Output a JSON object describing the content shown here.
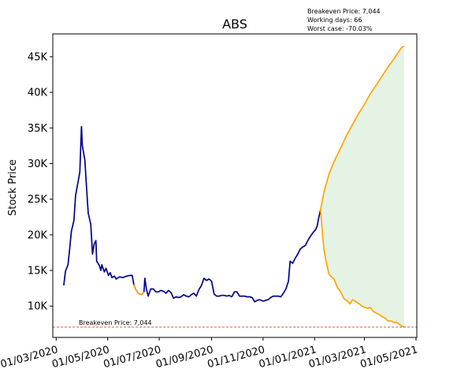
{
  "chart_data": {
    "type": "line",
    "title": "ABS",
    "ylabel": "Stock Price",
    "xlabel": "",
    "x_ticks": [
      "01/03/2020",
      "01/05/2020",
      "01/07/2020",
      "01/09/2020",
      "01/11/2020",
      "01/01/2021",
      "01/03/2021",
      "01/05/2021"
    ],
    "y_ticks": [
      "10K",
      "15K",
      "20K",
      "25K",
      "30K",
      "35K",
      "40K",
      "45K"
    ],
    "y_tick_values": [
      10000,
      15000,
      20000,
      25000,
      30000,
      35000,
      40000,
      45000
    ],
    "ylim": [
      5600,
      48200
    ],
    "xlim": [
      "2020-02-26",
      "2021-05-02"
    ],
    "grid": false,
    "info_lines": [
      "Breakeven Price: 7,044",
      "Working days: 66",
      "Worst case: -70.03%"
    ],
    "breakeven": {
      "value": 7044,
      "label": "Breakeven Price: 7,044",
      "color": "#e53935"
    },
    "band_color": "#a5d6a7",
    "series": [
      {
        "role": "historical",
        "color": "#00008b",
        "points": [
          [
            "2020-03-10",
            12900
          ],
          [
            "2020-03-12",
            14900
          ],
          [
            "2020-03-15",
            15800
          ],
          [
            "2020-03-17",
            18000
          ],
          [
            "2020-03-19",
            20500
          ],
          [
            "2020-03-22",
            22000
          ],
          [
            "2020-03-24",
            25500
          ],
          [
            "2020-03-27",
            27500
          ],
          [
            "2020-03-29",
            28800
          ],
          [
            "2020-03-31",
            35200
          ],
          [
            "2020-04-01",
            32500
          ],
          [
            "2020-04-04",
            30500
          ],
          [
            "2020-04-06",
            26500
          ],
          [
            "2020-04-08",
            23000
          ],
          [
            "2020-04-11",
            21500
          ],
          [
            "2020-04-13",
            17300
          ],
          [
            "2020-04-15",
            18700
          ],
          [
            "2020-04-17",
            19200
          ],
          [
            "2020-04-18",
            16300
          ],
          [
            "2020-04-21",
            15700
          ],
          [
            "2020-04-23",
            15000
          ],
          [
            "2020-04-24",
            15800
          ],
          [
            "2020-04-27",
            14800
          ],
          [
            "2020-04-29",
            15300
          ],
          [
            "2020-05-02",
            14300
          ],
          [
            "2020-05-04",
            14700
          ],
          [
            "2020-05-06",
            14000
          ],
          [
            "2020-05-09",
            14200
          ],
          [
            "2020-05-11",
            13800
          ],
          [
            "2020-05-15",
            14100
          ],
          [
            "2020-05-19",
            14000
          ],
          [
            "2020-05-23",
            14200
          ],
          [
            "2020-05-27",
            14300
          ],
          [
            "2020-05-30",
            14300
          ],
          [
            "2020-06-01",
            13000
          ]
        ]
      },
      {
        "role": "historical-gap",
        "color": "#ff8c00",
        "points": [
          [
            "2020-06-01",
            13000
          ],
          [
            "2020-06-03",
            12400
          ],
          [
            "2020-06-06",
            11800
          ],
          [
            "2020-06-10",
            11600
          ],
          [
            "2020-06-13",
            12000
          ]
        ]
      },
      {
        "role": "historical",
        "color": "#00008b",
        "points": [
          [
            "2020-06-13",
            12000
          ],
          [
            "2020-06-14",
            13900
          ],
          [
            "2020-06-16",
            12300
          ],
          [
            "2020-06-18",
            11400
          ],
          [
            "2020-06-21",
            12400
          ],
          [
            "2020-06-24",
            12400
          ],
          [
            "2020-06-27",
            12000
          ],
          [
            "2020-06-30",
            12000
          ],
          [
            "2020-07-03",
            12200
          ],
          [
            "2020-07-06",
            12100
          ],
          [
            "2020-07-09",
            11800
          ],
          [
            "2020-07-12",
            12200
          ],
          [
            "2020-07-15",
            11900
          ],
          [
            "2020-07-18",
            11100
          ],
          [
            "2020-07-21",
            11300
          ],
          [
            "2020-07-24",
            11200
          ],
          [
            "2020-07-27",
            11300
          ],
          [
            "2020-07-30",
            11600
          ],
          [
            "2020-08-02",
            11400
          ],
          [
            "2020-08-05",
            11300
          ],
          [
            "2020-08-08",
            11600
          ],
          [
            "2020-08-11",
            11800
          ],
          [
            "2020-08-14",
            11400
          ],
          [
            "2020-08-17",
            12300
          ],
          [
            "2020-08-20",
            12900
          ],
          [
            "2020-08-23",
            13900
          ],
          [
            "2020-08-26",
            13600
          ],
          [
            "2020-08-29",
            13800
          ],
          [
            "2020-09-01",
            13500
          ],
          [
            "2020-09-04",
            11700
          ],
          [
            "2020-09-07",
            11400
          ],
          [
            "2020-09-10",
            11400
          ],
          [
            "2020-09-13",
            11500
          ],
          [
            "2020-09-16",
            11500
          ],
          [
            "2020-09-19",
            11400
          ],
          [
            "2020-09-22",
            11500
          ],
          [
            "2020-09-25",
            11300
          ],
          [
            "2020-09-28",
            12000
          ],
          [
            "2020-10-01",
            12000
          ],
          [
            "2020-10-04",
            11400
          ],
          [
            "2020-10-07",
            11400
          ],
          [
            "2020-10-10",
            11400
          ],
          [
            "2020-10-13",
            11300
          ],
          [
            "2020-10-16",
            11300
          ],
          [
            "2020-10-19",
            11200
          ],
          [
            "2020-10-22",
            10600
          ],
          [
            "2020-10-25",
            10800
          ],
          [
            "2020-10-28",
            10900
          ],
          [
            "2020-11-01",
            10700
          ],
          [
            "2020-11-04",
            10800
          ],
          [
            "2020-11-07",
            10900
          ],
          [
            "2020-11-10",
            11200
          ],
          [
            "2020-11-13",
            11400
          ],
          [
            "2020-11-16",
            11400
          ],
          [
            "2020-11-19",
            11400
          ],
          [
            "2020-11-22",
            11300
          ],
          [
            "2020-11-25",
            11800
          ],
          [
            "2020-11-28",
            12400
          ],
          [
            "2020-12-01",
            13500
          ],
          [
            "2020-12-03",
            16300
          ],
          [
            "2020-12-06",
            16000
          ],
          [
            "2020-12-09",
            16700
          ],
          [
            "2020-12-12",
            17300
          ],
          [
            "2020-12-15",
            18000
          ],
          [
            "2020-12-18",
            18300
          ],
          [
            "2020-12-21",
            18500
          ],
          [
            "2020-12-24",
            19200
          ],
          [
            "2020-12-27",
            19800
          ],
          [
            "2020-12-30",
            20300
          ],
          [
            "2021-01-02",
            20700
          ],
          [
            "2021-01-04",
            21200
          ],
          [
            "2021-01-06",
            22500
          ],
          [
            "2021-01-08",
            23500
          ]
        ]
      }
    ],
    "projection": {
      "color": "#ffa500",
      "upper": [
        [
          "2021-01-08",
          23500
        ],
        [
          "2021-01-12",
          26000
        ],
        [
          "2021-01-18",
          28500
        ],
        [
          "2021-01-24",
          30300
        ],
        [
          "2021-02-01",
          32200
        ],
        [
          "2021-02-08",
          34000
        ],
        [
          "2021-02-15",
          35500
        ],
        [
          "2021-02-22",
          37000
        ],
        [
          "2021-03-01",
          38300
        ],
        [
          "2021-03-08",
          39800
        ],
        [
          "2021-03-15",
          41000
        ],
        [
          "2021-03-22",
          42300
        ],
        [
          "2021-03-29",
          43600
        ],
        [
          "2021-04-05",
          44700
        ],
        [
          "2021-04-10",
          45600
        ],
        [
          "2021-04-14",
          46300
        ],
        [
          "2021-04-17",
          46500
        ]
      ],
      "lower": [
        [
          "2021-01-08",
          23500
        ],
        [
          "2021-01-10",
          20500
        ],
        [
          "2021-01-12",
          18000
        ],
        [
          "2021-01-15",
          16000
        ],
        [
          "2021-01-18",
          14500
        ],
        [
          "2021-01-20",
          14200
        ],
        [
          "2021-01-24",
          13800
        ],
        [
          "2021-01-28",
          12600
        ],
        [
          "2021-02-01",
          12000
        ],
        [
          "2021-02-05",
          11000
        ],
        [
          "2021-02-08",
          10800
        ],
        [
          "2021-02-12",
          10300
        ],
        [
          "2021-02-15",
          10900
        ],
        [
          "2021-02-19",
          10600
        ],
        [
          "2021-02-22",
          10400
        ],
        [
          "2021-02-26",
          10000
        ],
        [
          "2021-03-01",
          9800
        ],
        [
          "2021-03-05",
          9700
        ],
        [
          "2021-03-08",
          9800
        ],
        [
          "2021-03-12",
          9200
        ],
        [
          "2021-03-15",
          9000
        ],
        [
          "2021-03-19",
          8800
        ],
        [
          "2021-03-22",
          8500
        ],
        [
          "2021-03-26",
          8300
        ],
        [
          "2021-03-29",
          7900
        ],
        [
          "2021-04-02",
          7900
        ],
        [
          "2021-04-05",
          7700
        ],
        [
          "2021-04-08",
          7700
        ],
        [
          "2021-04-11",
          7500
        ],
        [
          "2021-04-14",
          7200
        ],
        [
          "2021-04-17",
          7044
        ]
      ]
    }
  }
}
